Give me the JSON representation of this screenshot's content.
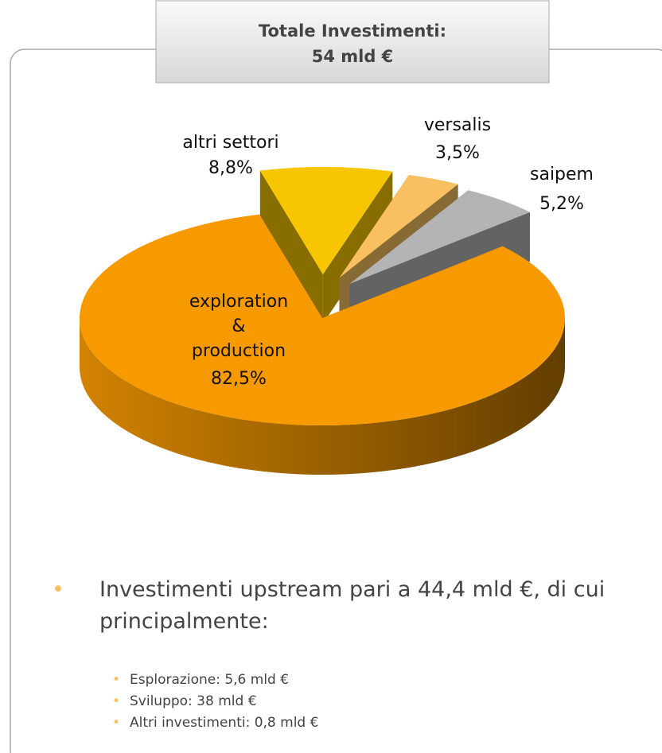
{
  "chart_data": {
    "type": "pie",
    "title": "Totale Investimenti:",
    "subtitle": "54 mld €",
    "categories": [
      "altri settori",
      "versalis",
      "saipem",
      "exploration & production"
    ],
    "values": [
      8.8,
      3.5,
      5.2,
      82.5
    ],
    "value_labels": [
      "8,8%",
      "3,5%",
      "5,2%",
      "82,5%"
    ],
    "colors": [
      "#f7c600",
      "#f8c060",
      "#b4b4b4",
      "#f79a00"
    ]
  },
  "notes": {
    "main": "Investimenti upstream pari a 44,4 mld €, di cui principalmente:",
    "items": [
      "Esplorazione: 5,6 mld €",
      "Sviluppo: 38 mld €",
      "Altri investimenti: 0,8 mld €"
    ]
  }
}
